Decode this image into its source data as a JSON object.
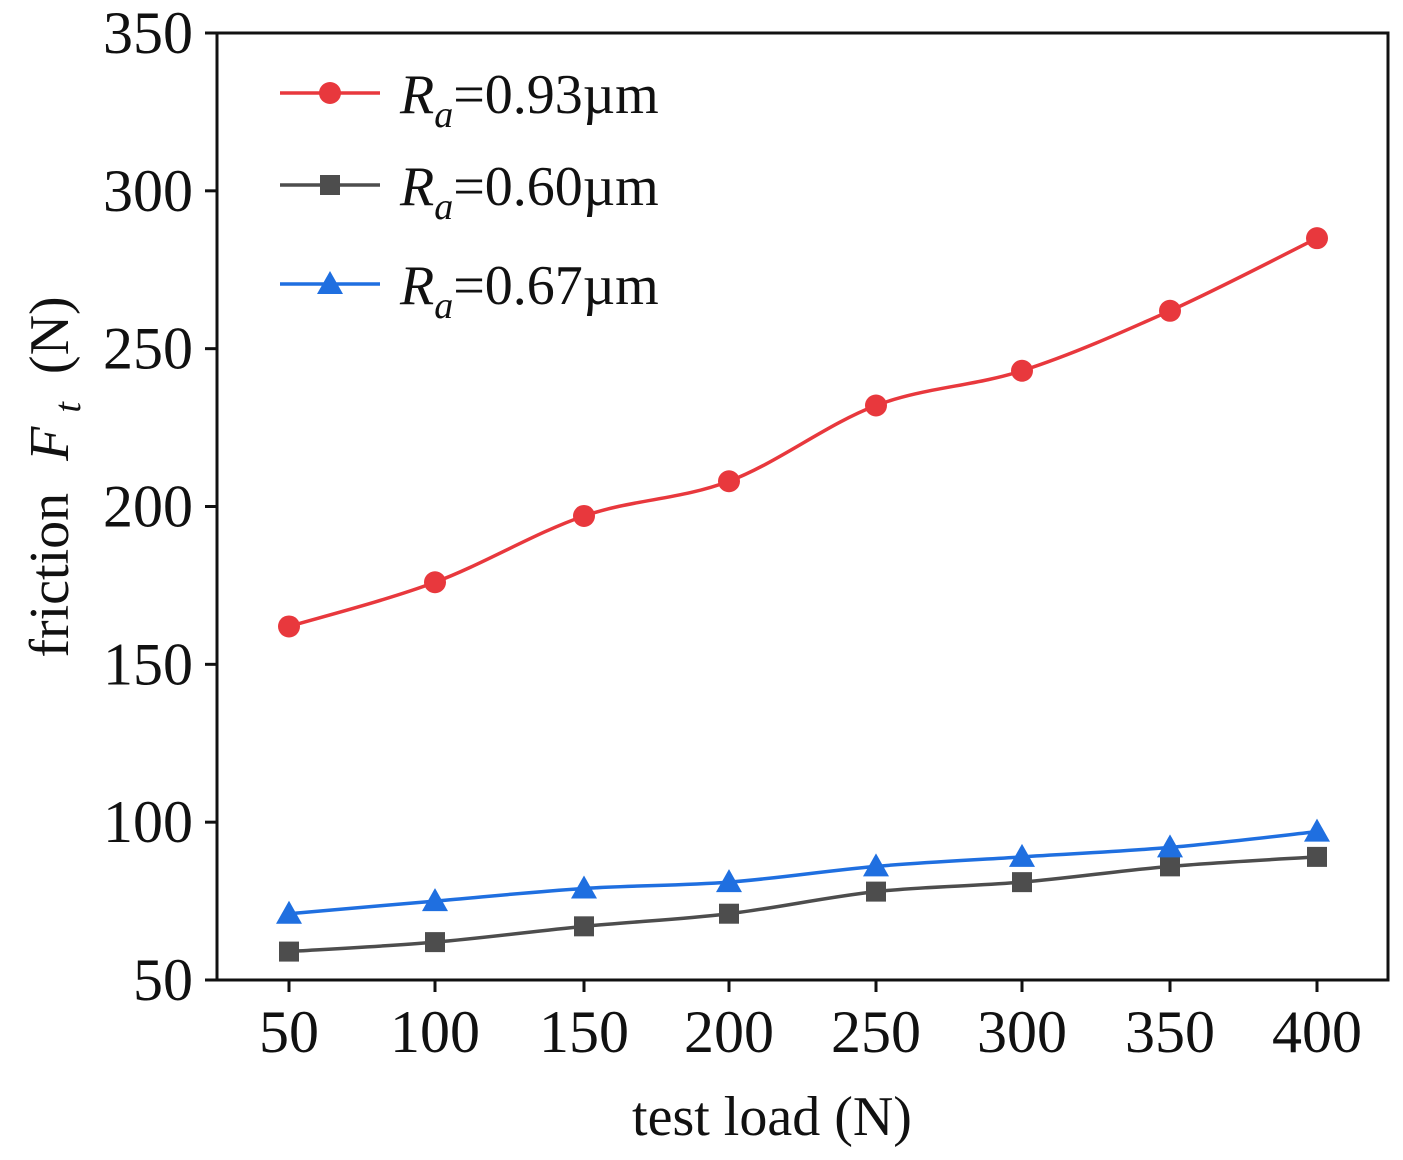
{
  "chart_data": {
    "type": "line",
    "title": "",
    "xlabel": "test load (N)",
    "ylabel": {
      "prefix": "friction",
      "symbol": "F",
      "subscript": "t",
      "unit": "(N)"
    },
    "categories": [
      50,
      100,
      150,
      200,
      250,
      300,
      350,
      400
    ],
    "ylim": [
      50,
      350
    ],
    "yticks": [
      50,
      100,
      150,
      200,
      250,
      300,
      350
    ],
    "legend_position": "top-left",
    "series": [
      {
        "name": "Ra=0.93µm",
        "symbol": "R",
        "subscript": "a",
        "value_text": "=0.93µm",
        "color": "#e8383d",
        "marker": "circle",
        "values": [
          162,
          176,
          197,
          208,
          232,
          243,
          262,
          285
        ]
      },
      {
        "name": "Ra=0.60µm",
        "symbol": "R",
        "subscript": "a",
        "value_text": "=0.60µm",
        "color": "#4d4d4d",
        "marker": "square",
        "values": [
          59,
          62,
          67,
          71,
          78,
          81,
          86,
          89
        ]
      },
      {
        "name": "Ra=0.67µm",
        "symbol": "R",
        "subscript": "a",
        "value_text": "=0.67µm",
        "color": "#1f6fe0",
        "marker": "triangle",
        "values": [
          71,
          75,
          79,
          81,
          86,
          89,
          92,
          97
        ]
      }
    ]
  }
}
